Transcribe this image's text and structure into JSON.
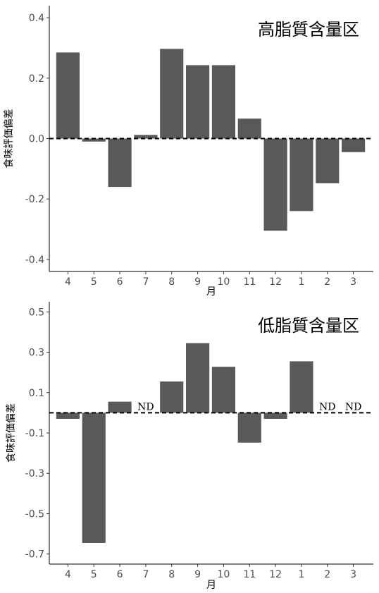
{
  "chart_data": [
    {
      "type": "bar",
      "title": "高脂質含量区",
      "xlabel": "月",
      "ylabel": "食味評価偏差",
      "categories": [
        "4",
        "5",
        "6",
        "7",
        "8",
        "9",
        "10",
        "11",
        "12",
        "1",
        "2",
        "3"
      ],
      "values": [
        0.285,
        -0.01,
        -0.16,
        0.012,
        0.297,
        0.243,
        0.243,
        0.066,
        -0.305,
        -0.24,
        -0.148,
        -0.045
      ],
      "ylim": [
        -0.44,
        0.44
      ],
      "yticks": [
        "-0.4",
        "-0.2",
        "0.0",
        "0.2",
        "0.4"
      ],
      "yticks_values": [
        -0.4,
        -0.2,
        0.0,
        0.2,
        0.4
      ],
      "reference_line": 0,
      "bar_color": "#595959",
      "grid": false
    },
    {
      "type": "bar",
      "title": "低脂質含量区",
      "xlabel": "月",
      "ylabel": "食味評価偏差",
      "categories": [
        "4",
        "5",
        "6",
        "7",
        "8",
        "9",
        "10",
        "11",
        "12",
        "1",
        "2",
        "3"
      ],
      "values": [
        -0.03,
        -0.645,
        0.055,
        null,
        0.155,
        0.345,
        0.228,
        -0.148,
        -0.03,
        0.255,
        null,
        null
      ],
      "missing_label": "ND",
      "ylim": [
        -0.75,
        0.55
      ],
      "yticks": [
        "-0.7",
        "-0.5",
        "-0.3",
        "-0.1",
        "0.1",
        "0.3",
        "0.5"
      ],
      "yticks_values": [
        -0.7,
        -0.5,
        -0.3,
        -0.1,
        0.1,
        0.3,
        0.5
      ],
      "reference_line": 0,
      "bar_color": "#595959",
      "grid": false
    }
  ]
}
